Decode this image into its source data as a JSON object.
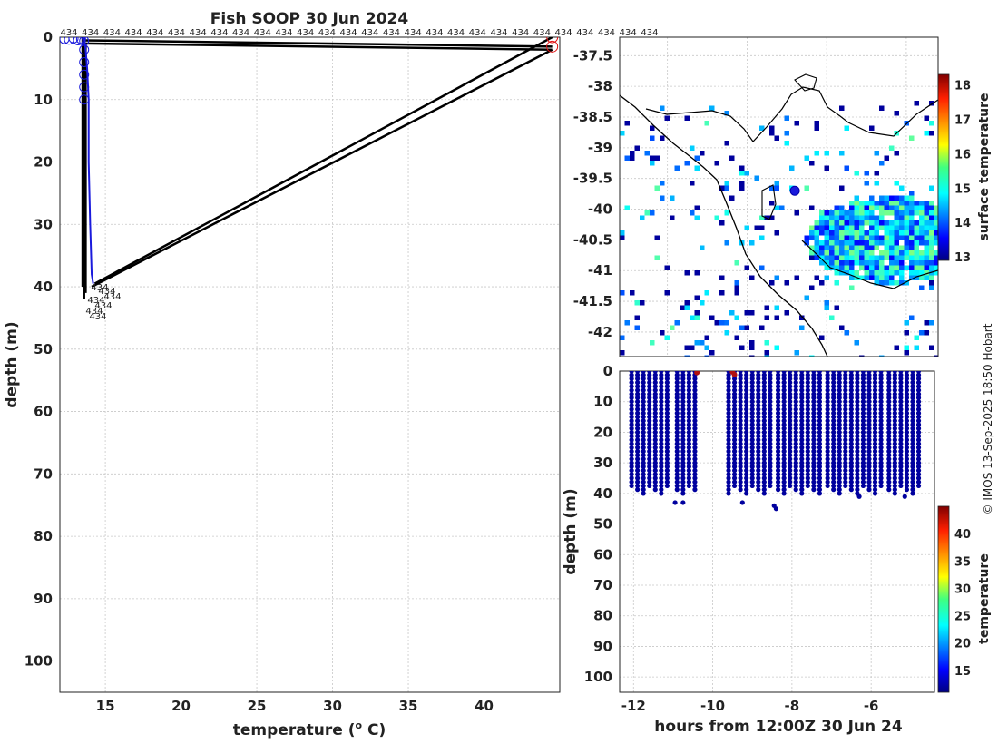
{
  "chart_data": [
    {
      "type": "line",
      "title": "Fish SOOP 30 Jun 2024",
      "xlabel": "temperature (",
      "xlabel_sup": "o",
      "xlabel_tail": " C)",
      "ylabel": "depth (m)",
      "xlim": [
        12,
        45
      ],
      "ylim": [
        105,
        0
      ],
      "xticks": [
        15,
        20,
        25,
        30,
        35,
        40
      ],
      "yticks": [
        0,
        10,
        20,
        30,
        40,
        50,
        60,
        70,
        80,
        90,
        100
      ],
      "vessel_id": "434",
      "profile_color": "#1a1adc",
      "spike_color": "#000000",
      "flag_color": "#e01010",
      "blue_profile": [
        [
          13.6,
          0
        ],
        [
          13.7,
          2
        ],
        [
          13.8,
          5
        ],
        [
          13.9,
          10
        ],
        [
          13.9,
          20
        ],
        [
          14.0,
          30
        ],
        [
          14.1,
          38
        ],
        [
          14.2,
          39.5
        ]
      ],
      "black_lines": [
        [
          [
            13.5,
            1
          ],
          [
            44.5,
            2
          ]
        ],
        [
          [
            13.5,
            0.5
          ],
          [
            44.5,
            1.5
          ]
        ],
        [
          [
            44.5,
            0
          ],
          [
            14.3,
            39.5
          ]
        ],
        [
          [
            44.5,
            2
          ],
          [
            14.1,
            40
          ]
        ]
      ],
      "black_profiles": [
        [
          [
            13.5,
            0
          ],
          [
            13.5,
            40
          ]
        ],
        [
          [
            13.6,
            0
          ],
          [
            13.6,
            42
          ]
        ],
        [
          [
            13.7,
            1
          ],
          [
            13.7,
            41
          ]
        ]
      ],
      "surface_circles": [
        [
          12.3,
          0.3
        ],
        [
          12.6,
          0.4
        ],
        [
          12.9,
          0.2
        ],
        [
          13.2,
          0.5
        ],
        [
          13.4,
          0.3
        ],
        [
          13.6,
          0.6
        ],
        [
          13.6,
          2
        ],
        [
          13.6,
          4
        ],
        [
          13.6,
          6
        ],
        [
          13.6,
          8
        ],
        [
          13.6,
          10
        ]
      ],
      "flagged_circles": [
        [
          44.5,
          0
        ],
        [
          44.5,
          1.5
        ]
      ]
    },
    {
      "type": "heatmap",
      "yticks": [
        -37.5,
        -38,
        -38.5,
        -39,
        -39.5,
        -40,
        -40.5,
        -41,
        -41.5,
        -42
      ],
      "colorbar_label": "surface temperature",
      "colorbar_ticks": [
        13,
        14,
        15,
        16,
        17,
        18
      ],
      "crange": [
        12.9,
        18.3
      ],
      "position_marker": [
        0.55,
        -39.7
      ]
    },
    {
      "type": "scatter",
      "xlabel": "hours from 12:00Z 30 Jun 24",
      "ylabel": "depth (m)",
      "xlim": [
        -12.35,
        -4.4
      ],
      "ylim": [
        105,
        0
      ],
      "xticks": [
        -12,
        -10,
        -8,
        -6
      ],
      "yticks": [
        0,
        10,
        20,
        30,
        40,
        50,
        60,
        70,
        80,
        90,
        100
      ],
      "colorbar_label": "temperature",
      "colorbar_ticks": [
        15,
        20,
        25,
        30,
        35,
        40
      ],
      "crange": [
        11,
        45
      ],
      "cast_hours": [
        -12.05,
        -11.9,
        -11.75,
        -11.6,
        -11.45,
        -11.3,
        -11.15,
        -10.9,
        -10.75,
        -10.6,
        -10.45,
        -9.6,
        -9.45,
        -9.3,
        -9.15,
        -9.0,
        -8.85,
        -8.7,
        -8.55,
        -8.35,
        -8.2,
        -8.05,
        -7.9,
        -7.75,
        -7.6,
        -7.45,
        -7.3,
        -7.1,
        -6.95,
        -6.8,
        -6.65,
        -6.5,
        -6.35,
        -6.2,
        -6.05,
        -5.9,
        -5.75,
        -5.55,
        -5.4,
        -5.25,
        -5.1,
        -4.95,
        -4.8
      ],
      "flagged_points": [
        [
          -10.4,
          0.5
        ],
        [
          -9.5,
          0.3
        ],
        [
          -9.45,
          1.2
        ]
      ]
    }
  ],
  "credit": "© IMOS 13-Sep-2025 18:50 Hobart"
}
